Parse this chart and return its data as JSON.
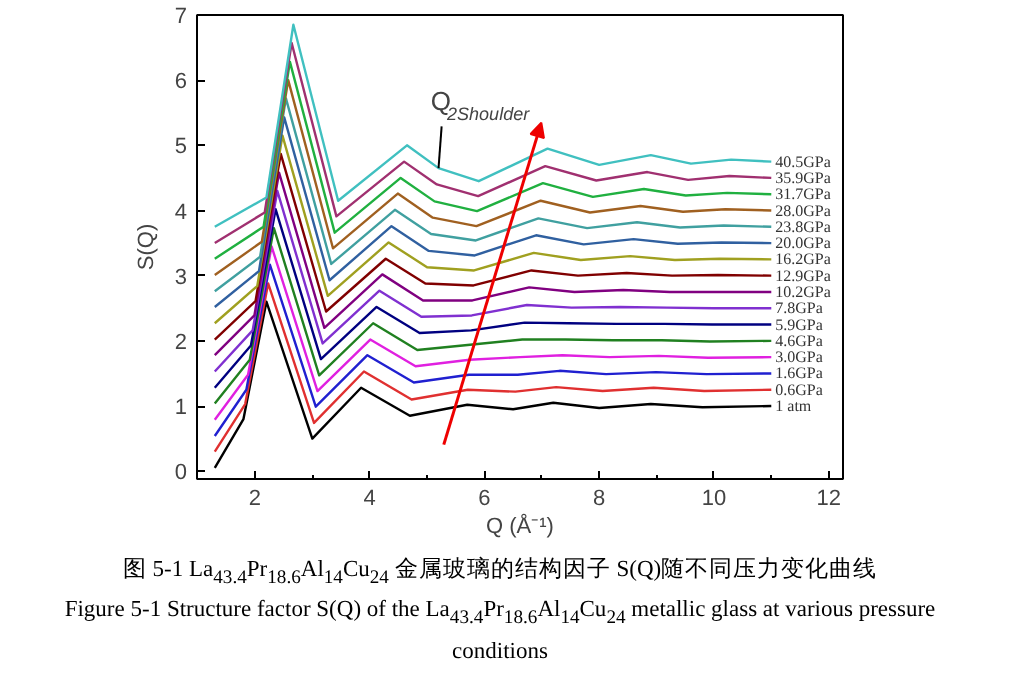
{
  "chart_data": {
    "type": "line",
    "xlabel": "Q (Å⁻¹)",
    "ylabel": "S(Q)",
    "xlim": [
      0.99,
      12.25
    ],
    "ylim": [
      -0.12,
      7
    ],
    "xticks": [
      2,
      4,
      6,
      8,
      10,
      12
    ],
    "yticks": [
      0,
      1,
      2,
      3,
      4,
      5,
      6,
      7
    ],
    "grid": false,
    "marker": "none",
    "line_style": "solid",
    "series": [
      {
        "name": "1 atm",
        "color": "#000000",
        "x": [
          1.3,
          1.8,
          2.2,
          3.0,
          3.85,
          4.7,
          5.7,
          6.5,
          7.2,
          8.0,
          8.9,
          9.8,
          11.0
        ],
        "values": [
          0.05,
          0.8,
          2.6,
          0.5,
          1.28,
          0.85,
          1.02,
          0.95,
          1.05,
          0.97,
          1.03,
          0.98,
          1.0
        ]
      },
      {
        "name": "0.6GPa",
        "color": "#e03030",
        "x": [
          1.3,
          1.83,
          2.23,
          3.03,
          3.9,
          4.73,
          5.71,
          6.54,
          7.25,
          8.06,
          8.95,
          9.83,
          11.0
        ],
        "values": [
          0.3,
          1.03,
          2.88,
          0.74,
          1.53,
          1.1,
          1.25,
          1.22,
          1.29,
          1.23,
          1.28,
          1.23,
          1.25
        ]
      },
      {
        "name": "1.6GPa",
        "color": "#2020d0",
        "x": [
          1.3,
          1.85,
          2.26,
          3.06,
          3.96,
          4.77,
          5.73,
          6.58,
          7.31,
          8.12,
          8.99,
          9.87,
          11.0
        ],
        "values": [
          0.54,
          1.25,
          3.17,
          0.99,
          1.78,
          1.36,
          1.48,
          1.48,
          1.54,
          1.49,
          1.52,
          1.49,
          1.5
        ]
      },
      {
        "name": "3.0GPa",
        "color": "#e020e0",
        "x": [
          1.3,
          1.88,
          2.29,
          3.09,
          4.01,
          4.8,
          5.74,
          6.62,
          7.36,
          8.18,
          9.04,
          9.9,
          11.0
        ],
        "values": [
          0.79,
          1.48,
          3.45,
          1.23,
          2.02,
          1.61,
          1.71,
          1.75,
          1.78,
          1.75,
          1.77,
          1.74,
          1.75
        ]
      },
      {
        "name": "4.6GPa",
        "color": "#208020",
        "x": [
          1.3,
          1.91,
          2.33,
          3.12,
          4.06,
          4.83,
          5.75,
          6.66,
          7.41,
          8.24,
          9.09,
          9.93,
          11.0
        ],
        "values": [
          1.04,
          1.71,
          3.73,
          1.47,
          2.27,
          1.86,
          1.94,
          2.02,
          2.02,
          2.01,
          2.01,
          1.99,
          2.0
        ]
      },
      {
        "name": "5.9GPa",
        "color": "#000080",
        "x": [
          1.3,
          1.93,
          2.36,
          3.15,
          4.12,
          4.87,
          5.77,
          6.7,
          7.47,
          8.3,
          9.13,
          9.97,
          11.0
        ],
        "values": [
          1.28,
          1.93,
          4.02,
          1.72,
          2.52,
          2.12,
          2.16,
          2.28,
          2.27,
          2.26,
          2.26,
          2.25,
          2.25
        ]
      },
      {
        "name": "7.8GPa",
        "color": "#8030d0",
        "x": [
          1.3,
          1.96,
          2.39,
          3.18,
          4.17,
          4.9,
          5.78,
          6.74,
          7.52,
          8.36,
          9.18,
          10.0,
          11.0
        ],
        "values": [
          1.53,
          2.16,
          4.3,
          1.96,
          2.77,
          2.37,
          2.39,
          2.55,
          2.51,
          2.52,
          2.51,
          2.5,
          2.5
        ]
      },
      {
        "name": "10.2GPa",
        "color": "#800080",
        "x": [
          1.3,
          1.99,
          2.42,
          3.21,
          4.22,
          4.93,
          5.79,
          6.78,
          7.57,
          8.42,
          9.23,
          10.03,
          11.0
        ],
        "values": [
          1.78,
          2.39,
          4.58,
          2.2,
          3.02,
          2.62,
          2.62,
          2.82,
          2.75,
          2.78,
          2.75,
          2.75,
          2.75
        ]
      },
      {
        "name": "12.9GPa",
        "color": "#800000",
        "x": [
          1.3,
          2.01,
          2.45,
          3.24,
          4.28,
          4.97,
          5.81,
          6.82,
          7.63,
          8.48,
          9.27,
          10.07,
          11.0
        ],
        "values": [
          2.02,
          2.61,
          4.87,
          2.45,
          3.26,
          2.88,
          2.85,
          3.08,
          3.0,
          3.04,
          3.0,
          3.01,
          3.0
        ]
      },
      {
        "name": "16.2GPa",
        "color": "#a0a020",
        "x": [
          1.3,
          2.04,
          2.48,
          3.27,
          4.33,
          5.0,
          5.82,
          6.86,
          7.68,
          8.54,
          9.32,
          10.1,
          11.0
        ],
        "values": [
          2.27,
          2.84,
          5.15,
          2.69,
          3.51,
          3.13,
          3.08,
          3.35,
          3.24,
          3.3,
          3.24,
          3.26,
          3.25
        ]
      },
      {
        "name": "20.0GPa",
        "color": "#3060a0",
        "x": [
          1.3,
          2.07,
          2.51,
          3.3,
          4.38,
          5.03,
          5.83,
          6.9,
          7.73,
          8.6,
          9.37,
          10.13,
          11.0
        ],
        "values": [
          2.52,
          3.07,
          5.43,
          2.93,
          3.76,
          3.38,
          3.31,
          3.62,
          3.48,
          3.56,
          3.49,
          3.51,
          3.5
        ]
      },
      {
        "name": "23.8GPa",
        "color": "#40a0a0",
        "x": [
          1.3,
          2.09,
          2.54,
          3.33,
          4.44,
          5.07,
          5.85,
          6.94,
          7.79,
          8.66,
          9.41,
          10.17,
          11.0
        ],
        "values": [
          2.76,
          3.29,
          5.72,
          3.18,
          4.01,
          3.64,
          3.54,
          3.88,
          3.73,
          3.82,
          3.74,
          3.77,
          3.75
        ]
      },
      {
        "name": "28.0GPa",
        "color": "#a06020",
        "x": [
          1.3,
          2.12,
          2.58,
          3.36,
          4.49,
          5.1,
          5.86,
          6.98,
          7.84,
          8.72,
          9.46,
          10.2,
          11.0
        ],
        "values": [
          3.01,
          3.52,
          6.0,
          3.42,
          4.26,
          3.89,
          3.76,
          4.15,
          3.97,
          4.07,
          3.98,
          4.02,
          4.0
        ]
      },
      {
        "name": "31.7GPa",
        "color": "#20b040",
        "x": [
          1.3,
          2.15,
          2.61,
          3.39,
          4.54,
          5.13,
          5.87,
          7.02,
          7.89,
          8.78,
          9.51,
          10.23,
          11.0
        ],
        "values": [
          3.26,
          3.75,
          6.28,
          3.66,
          4.5,
          4.14,
          3.99,
          4.42,
          4.21,
          4.33,
          4.23,
          4.27,
          4.25
        ]
      },
      {
        "name": "35.9GPa",
        "color": "#a03070",
        "x": [
          1.3,
          2.17,
          2.64,
          3.42,
          4.6,
          5.17,
          5.89,
          7.06,
          7.95,
          8.84,
          9.55,
          10.27,
          11.0
        ],
        "values": [
          3.5,
          3.97,
          6.57,
          3.91,
          4.75,
          4.4,
          4.22,
          4.68,
          4.46,
          4.59,
          4.47,
          4.53,
          4.5
        ]
      },
      {
        "name": "40.5GPa",
        "color": "#40c0c0",
        "x": [
          1.3,
          2.2,
          2.67,
          3.45,
          4.65,
          5.2,
          5.9,
          7.1,
          8.0,
          8.9,
          9.6,
          10.3,
          11.0
        ],
        "values": [
          3.75,
          4.2,
          6.85,
          4.15,
          5.0,
          4.65,
          4.45,
          4.95,
          4.7,
          4.85,
          4.72,
          4.78,
          4.75
        ]
      }
    ],
    "annotations": [
      {
        "text": "Q$_{2Shoulder}$",
        "x": 5.2,
        "y": 4.65
      },
      "图 5-1 La$_{43.4}$Pr$_{18.6}$Al$_{14}$Cu$_{24}$ 金属玻璃的结构因子 S(Q)随不同压力变化曲线",
      "Figure 5-1 Structure factor S(Q) of the La$_{43.4}$Pr$_{18.6}$Al$_{14}$Cu$_{24}$ metallic glass at various pressure conditions"
    ]
  }
}
